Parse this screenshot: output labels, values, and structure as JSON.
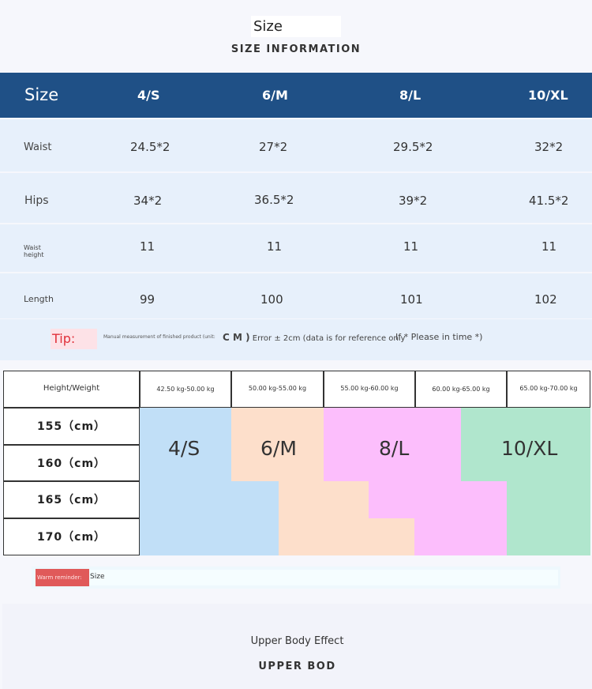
{
  "header": {
    "title": "Size",
    "subtitle": "SIZE INFORMATION"
  },
  "size_table": {
    "corner": "Size",
    "columns": [
      "4/S",
      "6/M",
      "8/L",
      "10/XL"
    ],
    "rows": [
      {
        "label": "Waist",
        "values": [
          "24.5*2",
          "27*2",
          "29.5*2",
          "32*2"
        ]
      },
      {
        "label": "Hips",
        "values": [
          "34*2",
          "36.5*2",
          "39*2",
          "41.5*2"
        ]
      },
      {
        "label": "Waist height",
        "values": [
          "11",
          "11",
          "11",
          "11"
        ]
      },
      {
        "label": "Length",
        "values": [
          "99",
          "100",
          "101",
          "102"
        ]
      }
    ],
    "tip": {
      "label": "Tip:",
      "small": "Manual measurement of finished product (unit:",
      "unit": "C M )",
      "error": "Error ± 2cm (data is for reference only",
      "right": "If * Please in time *)"
    }
  },
  "fit_chart": {
    "corner": "Height/Weight",
    "weights": [
      "42.50 kg-50.00 kg",
      "50.00 kg-55.00 kg",
      "55.00 kg-60.00 kg",
      "60.00 kg-65.00 kg",
      "65.00 kg-70.00 kg"
    ],
    "heights": [
      "155（cm）",
      "160（cm）",
      "165（cm）",
      "170（cm）"
    ],
    "sizes": [
      {
        "label": "4/S",
        "color": "#c1dff7"
      },
      {
        "label": "6/M",
        "color": "#fddfcb"
      },
      {
        "label": "8/L",
        "color": "#fcbefc"
      },
      {
        "label": "10/XL",
        "color": "#b0e6cd"
      }
    ]
  },
  "warm_reminder": {
    "badge": "Warm reminder:",
    "text": "Size"
  },
  "footer": {
    "line1": "Upper Body Effect",
    "line2": "UPPER BOD"
  }
}
